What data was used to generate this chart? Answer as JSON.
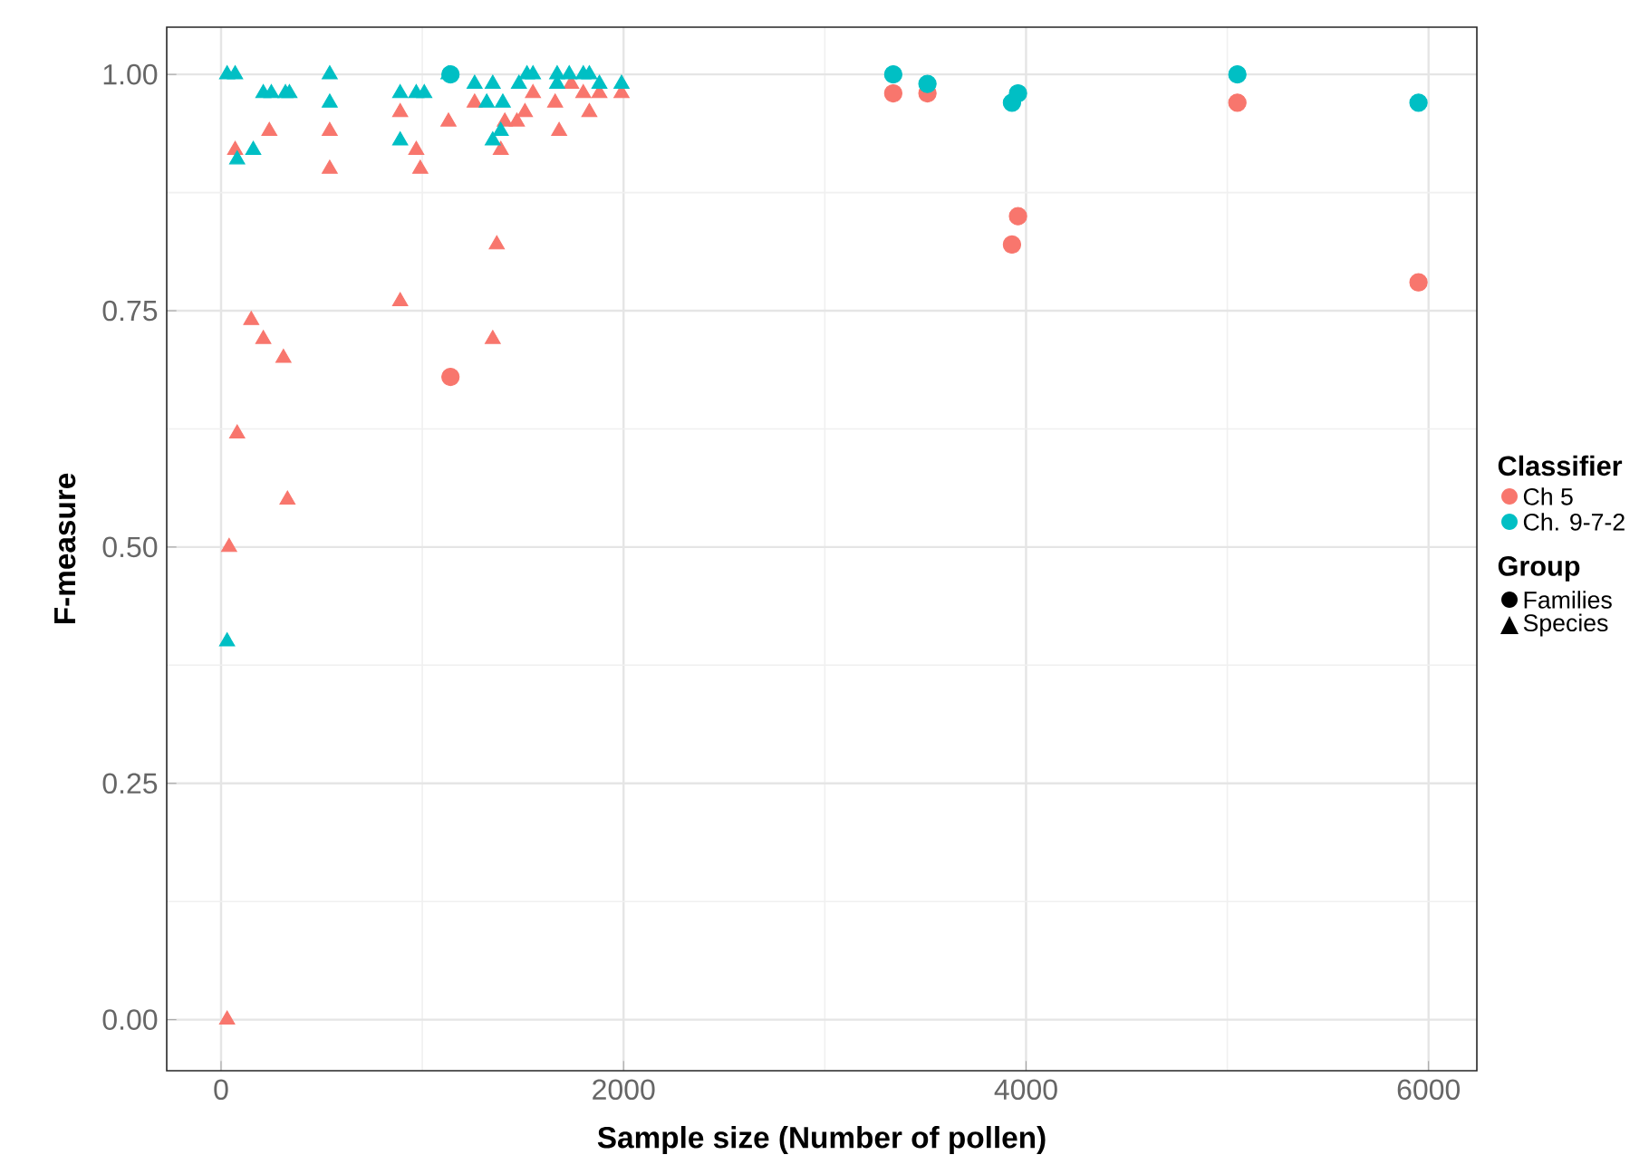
{
  "chart_data": {
    "type": "scatter",
    "xlabel": "Sample size (Number of pollen)",
    "ylabel": "F-measure",
    "legend_title": "Classifier",
    "legend": "right",
    "grid": true,
    "xlim": [
      -270,
      6240
    ],
    "xticks": [
      0,
      2000,
      4000,
      6000
    ],
    "ylim": [
      -0.054,
      1.05
    ],
    "yticks": [
      {
        "value": 0,
        "label": "0.00"
      },
      {
        "value": 0.25,
        "label": "0.25"
      },
      {
        "value": 0.5,
        "label": "0.50"
      },
      {
        "value": 0.75,
        "label": "0.75"
      },
      {
        "value": 1,
        "label": "1.00"
      }
    ],
    "series": [
      {
        "name": "Ch 5",
        "color": "#F8766D",
        "marker": "circle",
        "x": [
          1140,
          3340,
          3510,
          3930,
          3960,
          5050,
          5950
        ],
        "values": [
          0.68,
          0.98,
          0.98,
          0.82,
          0.85,
          0.97,
          0.78
        ]
      },
      {
        "color": "#F8766D",
        "marker": "triangle",
        "x": [
          70,
          240,
          540,
          540,
          890,
          970,
          990,
          1130,
          1260,
          1370,
          890,
          1390,
          1410,
          1470,
          1510,
          1550,
          1660,
          1680,
          1740,
          1800,
          1830,
          1880,
          1990,
          150,
          210,
          310,
          1350,
          80,
          330,
          40,
          30
        ],
        "values": [
          0.92,
          0.94,
          0.94,
          0.9,
          0.96,
          0.92,
          0.9,
          0.95,
          0.97,
          0.82,
          0.76,
          0.92,
          0.95,
          0.95,
          0.96,
          0.98,
          0.97,
          0.94,
          0.99,
          0.98,
          0.96,
          0.98,
          0.98,
          0.74,
          0.72,
          0.7,
          0.72,
          0.62,
          0.55,
          0.5,
          0.0
        ]
      },
      {
        "name": "Ch. 9-7-2",
        "color": "#00BFC4",
        "marker": "circle",
        "x": [
          1140,
          3340,
          3510,
          3930,
          3960,
          5050,
          5950
        ],
        "values": [
          1.0,
          1.0,
          0.99,
          0.97,
          0.98,
          1.0,
          0.97
        ]
      },
      {
        "color": "#00BFC4",
        "marker": "triangle",
        "x": [
          30,
          70,
          210,
          250,
          320,
          340,
          540,
          540,
          160,
          80,
          890,
          970,
          1010,
          890,
          1130,
          1260,
          1350,
          1320,
          1400,
          1350,
          1390,
          1480,
          1520,
          1550,
          1670,
          1670,
          1730,
          1800,
          1830,
          1880,
          1990,
          30
        ],
        "values": [
          1.0,
          1.0,
          0.98,
          0.98,
          0.98,
          0.98,
          1.0,
          0.97,
          0.92,
          0.91,
          0.98,
          0.98,
          0.98,
          0.93,
          1.0,
          0.99,
          0.99,
          0.97,
          0.97,
          0.93,
          0.94,
          0.99,
          1.0,
          1.0,
          1.0,
          0.99,
          1.0,
          1.0,
          1.0,
          0.99,
          0.99,
          0.4
        ]
      }
    ],
    "annotations": [
      "Group",
      "Families",
      "Species"
    ]
  }
}
